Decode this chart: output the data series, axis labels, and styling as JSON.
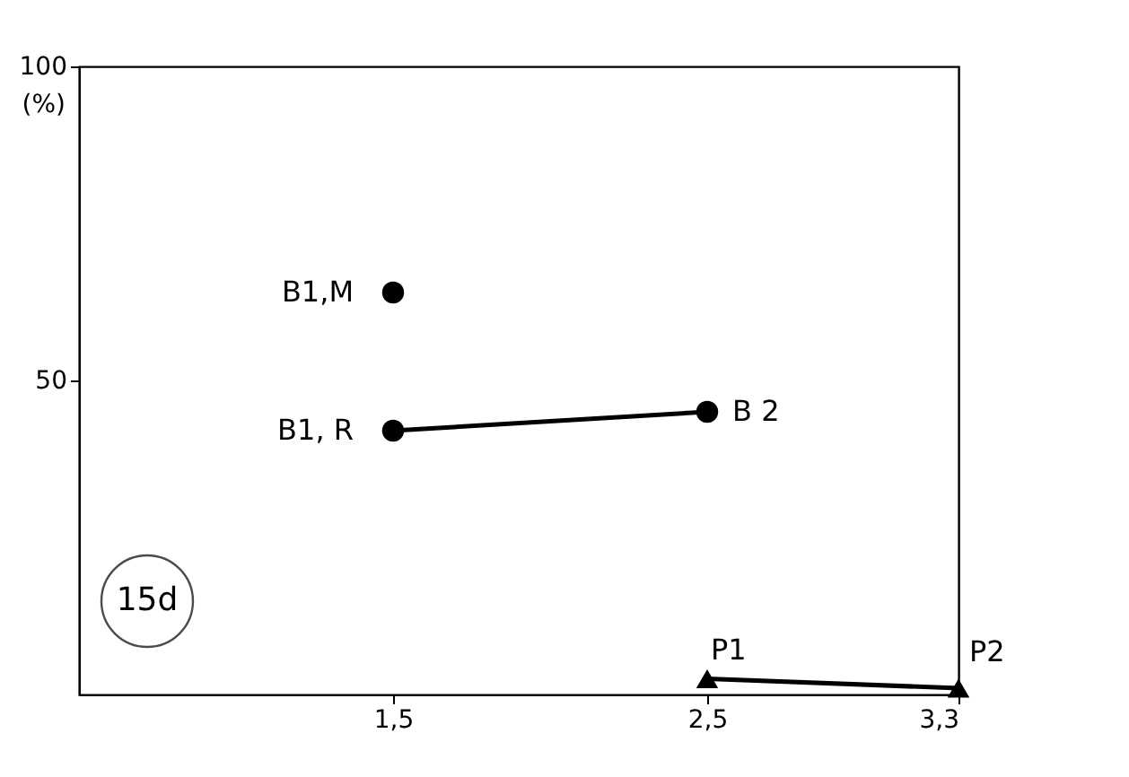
{
  "chart_data": {
    "type": "line",
    "ylabel": "(%)",
    "xlim": [
      0.5,
      3.3
    ],
    "xticks": [
      {
        "value": 1.5,
        "label": "1,5"
      },
      {
        "value": 2.5,
        "label": "2,5"
      },
      {
        "value": 3.3,
        "label": "3,3"
      }
    ],
    "ylim": [
      0,
      100
    ],
    "yticks": [
      50,
      100
    ],
    "grid": false,
    "series": [
      {
        "type": "scatter",
        "color": "#000000",
        "marker": "circle",
        "x": [
          1.5
        ],
        "values": [
          64
        ]
      },
      {
        "color": "#000000",
        "marker": "circle",
        "x": [
          1.5,
          2.5
        ],
        "values": [
          42,
          45
        ]
      },
      {
        "color": "#000000",
        "marker": "triangle",
        "x": [
          2.5,
          3.3
        ],
        "values": [
          2.5,
          1
        ]
      }
    ],
    "annotations": [
      {
        "text": "B1,M",
        "x": 1.5,
        "y": 64
      },
      {
        "text": "B1, R",
        "x": 1.5,
        "y": 42
      },
      {
        "text": "B 2",
        "x": 2.5,
        "y": 45
      },
      {
        "text": "P1",
        "x": 2.5,
        "y": 2.5
      },
      {
        "text": "P2",
        "x": 3.3,
        "y": 1
      },
      "15d"
    ]
  }
}
